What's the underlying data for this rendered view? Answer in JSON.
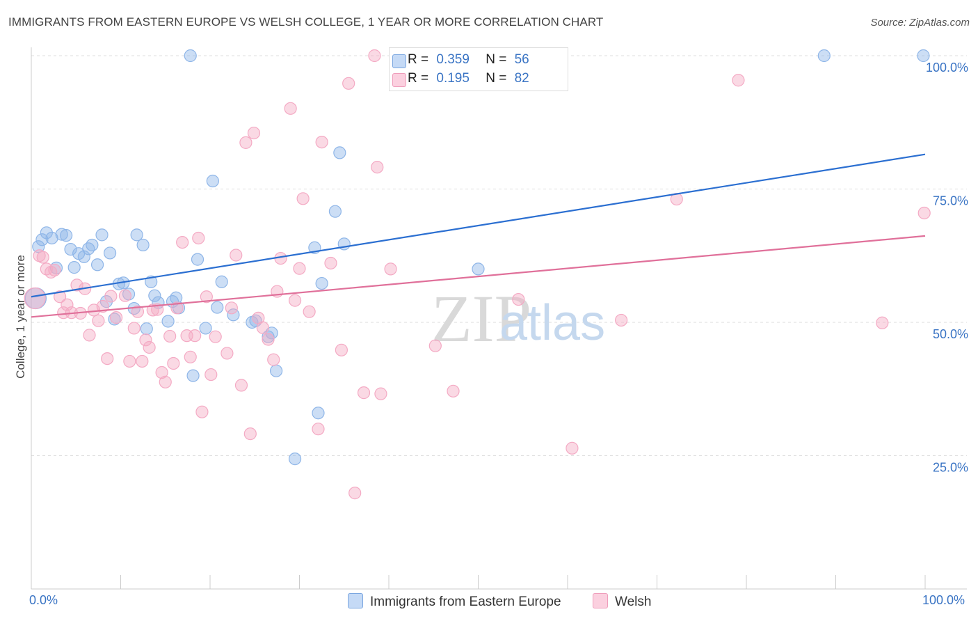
{
  "title": "IMMIGRANTS FROM EASTERN EUROPE VS WELSH COLLEGE, 1 YEAR OR MORE CORRELATION CHART",
  "source": "Source: ZipAtlas.com",
  "watermark": {
    "zip": "ZIP",
    "atlas": "atlas"
  },
  "legend": {
    "r_label": "R =",
    "n_label": "N =",
    "series": [
      {
        "r": "0.359",
        "n": "56"
      },
      {
        "r": "0.195",
        "n": "82"
      }
    ]
  },
  "chart_data": {
    "type": "scatter",
    "title": "IMMIGRANTS FROM EASTERN EUROPE VS WELSH COLLEGE, 1 YEAR OR MORE CORRELATION CHART",
    "xlabel": "",
    "ylabel": "College, 1 year or more",
    "xlim": [
      0,
      100
    ],
    "ylim": [
      0,
      100
    ],
    "x_tick_labels": [
      "0.0%",
      "100.0%"
    ],
    "y_tick_labels": [
      "100.0%",
      "75.0%",
      "50.0%",
      "25.0%"
    ],
    "y_ticks": [
      100,
      75,
      50,
      25
    ],
    "grid": true,
    "legend_position": "bottom-center",
    "series": [
      {
        "name": "Immigrants from Eastern Europe",
        "color": "#8fb6e8",
        "line_color": "#2b6fd1",
        "r": 0.359,
        "n": 56,
        "trend": {
          "x": [
            0,
            100
          ],
          "y": [
            54.8,
            81.5
          ]
        },
        "points": [
          [
            0.5,
            54.5
          ],
          [
            0.8,
            64.2
          ],
          [
            1.2,
            65.5
          ],
          [
            1.7,
            66.8
          ],
          [
            2.3,
            65.8
          ],
          [
            2.8,
            60.2
          ],
          [
            3.4,
            66.5
          ],
          [
            3.9,
            66.3
          ],
          [
            4.4,
            63.7
          ],
          [
            4.8,
            60.3
          ],
          [
            5.3,
            62.9
          ],
          [
            5.9,
            62.3
          ],
          [
            6.4,
            63.8
          ],
          [
            6.8,
            64.5
          ],
          [
            7.4,
            60.8
          ],
          [
            7.9,
            66.4
          ],
          [
            8.4,
            53.9
          ],
          [
            8.8,
            63
          ],
          [
            9.3,
            50.6
          ],
          [
            9.8,
            57.2
          ],
          [
            10.3,
            57.4
          ],
          [
            10.9,
            55.3
          ],
          [
            11.5,
            52.6
          ],
          [
            11.8,
            66.4
          ],
          [
            12.5,
            64.5
          ],
          [
            12.9,
            48.8
          ],
          [
            13.4,
            57.6
          ],
          [
            13.8,
            55
          ],
          [
            14.2,
            53.7
          ],
          [
            15.3,
            50.2
          ],
          [
            15.8,
            53.9
          ],
          [
            16.2,
            54.6
          ],
          [
            16.5,
            52.7
          ],
          [
            18.1,
            40
          ],
          [
            18.6,
            61.8
          ],
          [
            19.5,
            48.9
          ],
          [
            20.3,
            76.5
          ],
          [
            20.8,
            52.8
          ],
          [
            21.3,
            57.6
          ],
          [
            22.6,
            51.4
          ],
          [
            24.7,
            50
          ],
          [
            25.1,
            50.3
          ],
          [
            26.5,
            47.3
          ],
          [
            26.9,
            48
          ],
          [
            27.4,
            40.9
          ],
          [
            29.5,
            24.4
          ],
          [
            31.7,
            64
          ],
          [
            32.1,
            33
          ],
          [
            32.5,
            57.3
          ],
          [
            34.0,
            70.8
          ],
          [
            34.5,
            81.8
          ],
          [
            35.0,
            64.7
          ],
          [
            50.0,
            60
          ],
          [
            17.8,
            100
          ],
          [
            88.7,
            100
          ],
          [
            99.8,
            100
          ]
        ]
      },
      {
        "name": "Welsh",
        "color": "#f4aac4",
        "line_color": "#e0709a",
        "r": 0.195,
        "n": 82,
        "trend": {
          "x": [
            0,
            100
          ],
          "y": [
            51.0,
            66.2
          ]
        },
        "points": [
          [
            0.4,
            54.5
          ],
          [
            0.9,
            62.5
          ],
          [
            1.3,
            62.2
          ],
          [
            1.7,
            60
          ],
          [
            2.2,
            59.4
          ],
          [
            2.6,
            59.8
          ],
          [
            3.2,
            54.8
          ],
          [
            3.6,
            51.8
          ],
          [
            4,
            53.3
          ],
          [
            4.5,
            51.8
          ],
          [
            5.1,
            57
          ],
          [
            5.5,
            51.7
          ],
          [
            6,
            56.3
          ],
          [
            6.5,
            47.6
          ],
          [
            7,
            52.3
          ],
          [
            7.5,
            50.3
          ],
          [
            8,
            53
          ],
          [
            8.5,
            43.2
          ],
          [
            8.9,
            54.9
          ],
          [
            9.5,
            50.9
          ],
          [
            10.5,
            55
          ],
          [
            11,
            42.7
          ],
          [
            11.5,
            48.9
          ],
          [
            11.9,
            52
          ],
          [
            12.4,
            42.7
          ],
          [
            12.8,
            46.7
          ],
          [
            13.2,
            45.3
          ],
          [
            13.6,
            52.3
          ],
          [
            14.1,
            52.4
          ],
          [
            14.6,
            40.6
          ],
          [
            15,
            38.8
          ],
          [
            15.5,
            47.4
          ],
          [
            15.9,
            42.3
          ],
          [
            16.3,
            52.7
          ],
          [
            16.9,
            65
          ],
          [
            17.4,
            47.5
          ],
          [
            17.8,
            43.5
          ],
          [
            18.3,
            47.5
          ],
          [
            18.7,
            65.8
          ],
          [
            19.1,
            33.2
          ],
          [
            19.6,
            54.8
          ],
          [
            20.1,
            40.2
          ],
          [
            20.6,
            47.3
          ],
          [
            21.9,
            44.2
          ],
          [
            22.4,
            52.7
          ],
          [
            22.9,
            62.6
          ],
          [
            23.5,
            38.2
          ],
          [
            24,
            83.7
          ],
          [
            24.5,
            29.1
          ],
          [
            24.9,
            85.5
          ],
          [
            25.4,
            50.8
          ],
          [
            25.9,
            49
          ],
          [
            26.5,
            46.8
          ],
          [
            27.1,
            43
          ],
          [
            27.5,
            55.8
          ],
          [
            27.9,
            62
          ],
          [
            29.0,
            90.1
          ],
          [
            29.5,
            54.1
          ],
          [
            30.0,
            60.1
          ],
          [
            30.4,
            73.2
          ],
          [
            31.1,
            52
          ],
          [
            32.1,
            30
          ],
          [
            32.5,
            83.8
          ],
          [
            33.5,
            61.1
          ],
          [
            34.7,
            44.8
          ],
          [
            35.5,
            94.8
          ],
          [
            36.2,
            18
          ],
          [
            37.2,
            36.8
          ],
          [
            38.4,
            100
          ],
          [
            38.7,
            79.1
          ],
          [
            39.1,
            36.6
          ],
          [
            40.2,
            60
          ],
          [
            41.2,
            100
          ],
          [
            45.2,
            45.6
          ],
          [
            47.2,
            37.1
          ],
          [
            54.5,
            54.3
          ],
          [
            60.5,
            26.4
          ],
          [
            66.0,
            50.4
          ],
          [
            72.2,
            73.1
          ],
          [
            79.1,
            95.4
          ],
          [
            95.2,
            49.9
          ],
          [
            99.9,
            70.5
          ]
        ]
      }
    ]
  }
}
